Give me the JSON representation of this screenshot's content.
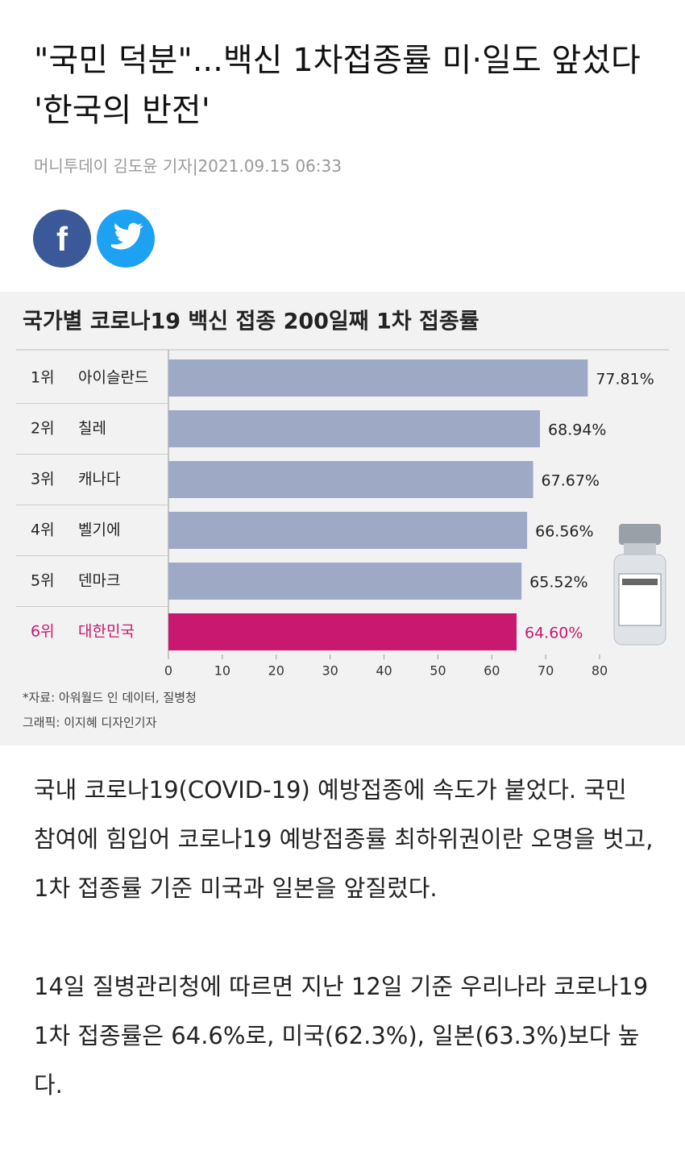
{
  "headline": "\"국민 덕분\"...백신 1차접종률 미·일도 앞섰다 '한국의 반전'",
  "byline": "머니투데이 김도윤 기자|2021.09.15 06:33",
  "chart_data": {
    "type": "bar",
    "orientation": "horizontal",
    "title": "국가별 코로나19 백신 접종 200일째 1차 접종률",
    "ranks": [
      "1위",
      "2위",
      "3위",
      "4위",
      "5위",
      "6위"
    ],
    "categories": [
      "아이슬란드",
      "칠레",
      "캐나다",
      "벨기에",
      "덴마크",
      "대한민국"
    ],
    "values": [
      77.81,
      68.94,
      67.67,
      66.56,
      65.52,
      64.6
    ],
    "value_labels": [
      "77.81%",
      "68.94%",
      "67.67%",
      "66.56%",
      "65.52%",
      "64.60%"
    ],
    "colors": [
      "#9ea9c6",
      "#9ea9c6",
      "#9ea9c6",
      "#9ea9c6",
      "#9ea9c6",
      "#c8186f"
    ],
    "xlim": [
      0,
      80
    ],
    "xticks": [
      0,
      10,
      20,
      30,
      40,
      50,
      60,
      70,
      80
    ],
    "grid": false,
    "notes": [
      "*자료: 아워월드 인 데이터, 질병청",
      "그래픽: 이지혜 디자인기자"
    ]
  },
  "body": [
    "국내 코로나19(COVID-19) 예방접종에 속도가 붙었다. 국민 참여에 힘입어 코로나19 예방접종률 최하위권이란 오명을 벗고, 1차 접종률 기준 미국과 일본을 앞질렀다.",
    "14일 질병관리청에 따르면 지난 12일 기준 우리나라 코로나19 1차 접종률은 64.6%로, 미국(62.3%), 일본(63.3%)보다 높다."
  ]
}
